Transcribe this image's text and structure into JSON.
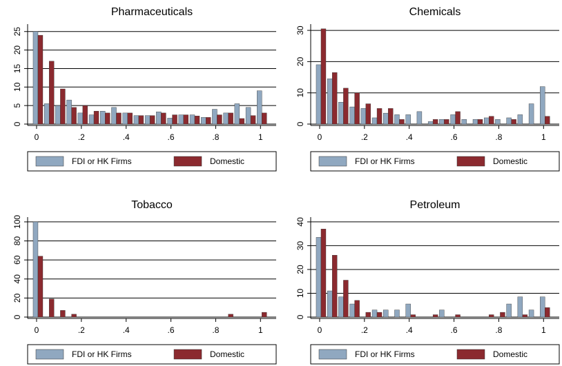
{
  "chart_data": [
    {
      "type": "bar",
      "title": "Pharmaceuticals",
      "x": [
        0,
        0.05,
        0.1,
        0.15,
        0.2,
        0.25,
        0.3,
        0.35,
        0.4,
        0.45,
        0.5,
        0.55,
        0.6,
        0.65,
        0.7,
        0.75,
        0.8,
        0.85,
        0.9,
        0.95,
        1
      ],
      "series": [
        {
          "name": "FDI or HK Firms",
          "color": "#90a8c0",
          "values": [
            25,
            5.5,
            5,
            6.5,
            3,
            2.5,
            3.5,
            4.5,
            3,
            2.3,
            2.3,
            3.3,
            1.6,
            2.5,
            2.5,
            1.8,
            4,
            3,
            5.5,
            4.5,
            9
          ]
        },
        {
          "name": "Domestic",
          "color": "#8b2a2f",
          "values": [
            24,
            17,
            9.5,
            4.5,
            5,
            3.5,
            3,
            3,
            3,
            2.3,
            2.3,
            3,
            2.5,
            2.5,
            2.2,
            1.8,
            2.5,
            3,
            1.5,
            2.3,
            3
          ]
        }
      ],
      "xlim": [
        -0.04,
        1.07
      ],
      "ylim": [
        0,
        27
      ],
      "xticks": [
        0,
        {
          "value": 0.2,
          "label": ".2"
        },
        {
          "value": 0.4,
          "label": ".4"
        },
        {
          "value": 0.6,
          "label": ".6"
        },
        {
          "value": 0.8,
          "label": ".8"
        },
        1
      ],
      "yticks": [
        0,
        5,
        10,
        15,
        20,
        25
      ],
      "grid": true
    },
    {
      "type": "bar",
      "title": "Chemicals",
      "x": [
        0,
        0.05,
        0.1,
        0.15,
        0.2,
        0.25,
        0.3,
        0.35,
        0.4,
        0.45,
        0.5,
        0.55,
        0.6,
        0.65,
        0.7,
        0.75,
        0.8,
        0.85,
        0.9,
        0.95,
        1
      ],
      "series": [
        {
          "name": "FDI or HK Firms",
          "color": "#90a8c0",
          "values": [
            19,
            14.5,
            7,
            5.5,
            5,
            2,
            3.5,
            3,
            3,
            4,
            0.8,
            1.5,
            3,
            1.5,
            1.5,
            2,
            1.5,
            2,
            3,
            6.5,
            12
          ]
        },
        {
          "name": "Domestic",
          "color": "#8b2a2f",
          "values": [
            30.5,
            16.5,
            11.5,
            10,
            6.5,
            5,
            5,
            1.5,
            0,
            0,
            1.5,
            1.5,
            4,
            0,
            1.5,
            2.5,
            0,
            1.5,
            0,
            0,
            2.5
          ]
        }
      ],
      "xlim": [
        -0.04,
        1.07
      ],
      "ylim": [
        0,
        32
      ],
      "xticks": [
        0,
        {
          "value": 0.2,
          "label": ".2"
        },
        {
          "value": 0.4,
          "label": ".4"
        },
        {
          "value": 0.6,
          "label": ".6"
        },
        {
          "value": 0.8,
          "label": ".8"
        },
        1
      ],
      "yticks": [
        0,
        10,
        20,
        30
      ],
      "grid": true
    },
    {
      "type": "bar",
      "title": "Tobacco",
      "x": [
        0,
        0.05,
        0.1,
        0.15,
        0.2,
        0.25,
        0.3,
        0.35,
        0.4,
        0.45,
        0.5,
        0.55,
        0.6,
        0.65,
        0.7,
        0.75,
        0.8,
        0.85,
        0.9,
        0.95,
        1
      ],
      "series": [
        {
          "name": "FDI or HK Firms",
          "color": "#90a8c0",
          "values": [
            100,
            0,
            0,
            0,
            0,
            0,
            0,
            0,
            0,
            0,
            0,
            0,
            0,
            0,
            0,
            0,
            0,
            0,
            0,
            0,
            0
          ]
        },
        {
          "name": "Domestic",
          "color": "#8b2a2f",
          "values": [
            64,
            19,
            7,
            3,
            0,
            0,
            0,
            0,
            0,
            0,
            0,
            0,
            0,
            0,
            0,
            0,
            0,
            3,
            0,
            0,
            5
          ]
        }
      ],
      "xlim": [
        -0.04,
        1.07
      ],
      "ylim": [
        0,
        105
      ],
      "xticks": [
        0,
        {
          "value": 0.2,
          "label": ".2"
        },
        {
          "value": 0.4,
          "label": ".4"
        },
        {
          "value": 0.6,
          "label": ".6"
        },
        {
          "value": 0.8,
          "label": ".8"
        },
        1
      ],
      "yticks": [
        0,
        20,
        40,
        60,
        80,
        100
      ],
      "grid": true
    },
    {
      "type": "bar",
      "title": "Petroleum",
      "x": [
        0,
        0.05,
        0.1,
        0.15,
        0.2,
        0.25,
        0.3,
        0.35,
        0.4,
        0.45,
        0.5,
        0.55,
        0.6,
        0.65,
        0.7,
        0.75,
        0.8,
        0.85,
        0.9,
        0.95,
        1
      ],
      "series": [
        {
          "name": "FDI or HK Firms",
          "color": "#90a8c0",
          "values": [
            33.5,
            11,
            8.5,
            5.5,
            0,
            3,
            3,
            3,
            5.5,
            0,
            0,
            3,
            0,
            0,
            0,
            0,
            0,
            5.5,
            8.5,
            3,
            8.5
          ]
        },
        {
          "name": "Domestic",
          "color": "#8b2a2f",
          "values": [
            37,
            26,
            15.5,
            7,
            2,
            2,
            0,
            0,
            1,
            0,
            1,
            0,
            1,
            0,
            0,
            1,
            2,
            0,
            1,
            0,
            4
          ]
        }
      ],
      "xlim": [
        -0.04,
        1.07
      ],
      "ylim": [
        0,
        42
      ],
      "xticks": [
        0,
        {
          "value": 0.2,
          "label": ".2"
        },
        {
          "value": 0.4,
          "label": ".4"
        },
        {
          "value": 0.6,
          "label": ".6"
        },
        {
          "value": 0.8,
          "label": ".8"
        },
        1
      ],
      "yticks": [
        0,
        10,
        20,
        30,
        40
      ],
      "grid": true
    }
  ]
}
